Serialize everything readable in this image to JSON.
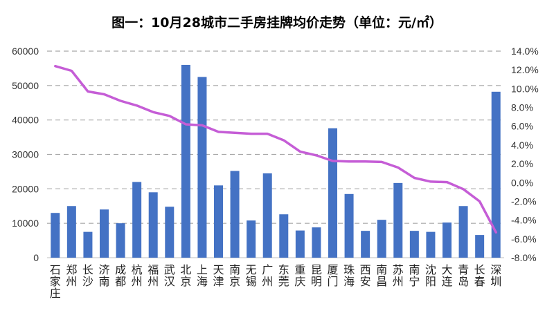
{
  "chart_data": {
    "type": "bar",
    "title": "图一：10月28城市二手房挂牌均价走势（单位：元/㎡）",
    "categories": [
      "石家庄",
      "郑州",
      "长沙",
      "济南",
      "成都",
      "杭州",
      "福州",
      "武汉",
      "北京",
      "上海",
      "天津",
      "南京",
      "无锡",
      "广州",
      "东莞",
      "重庆",
      "昆明",
      "厦门",
      "珠海",
      "西安",
      "南昌",
      "苏州",
      "南宁",
      "沈阳",
      "大连",
      "青岛",
      "长春",
      "深圳"
    ],
    "series": [
      {
        "type": "bar",
        "axis": "left",
        "color": "#4472C4",
        "values": [
          13000,
          15000,
          7500,
          14000,
          10000,
          22000,
          19000,
          14800,
          56000,
          52500,
          21000,
          25200,
          10800,
          24500,
          12600,
          7900,
          8800,
          37600,
          18500,
          7800,
          11000,
          21700,
          7800,
          7500,
          10200,
          15000,
          6600,
          48200
        ]
      },
      {
        "type": "line",
        "axis": "right",
        "color": "#C55DD6",
        "values": [
          12.4,
          11.9,
          9.7,
          9.4,
          8.7,
          8.2,
          7.5,
          7.1,
          6.2,
          6.1,
          5.4,
          5.3,
          5.2,
          5.2,
          4.5,
          3.3,
          2.9,
          2.3,
          2.25,
          2.25,
          2.2,
          1.6,
          0.5,
          0.1,
          0.05,
          -0.7,
          -2.0,
          -5.3
        ]
      }
    ],
    "y_left": {
      "min": 0,
      "max": 60000,
      "ticks": [
        "0",
        "10000",
        "20000",
        "30000",
        "40000",
        "50000",
        "60000"
      ]
    },
    "y_right": {
      "min": -8,
      "max": 14,
      "ticks": [
        "-8.0%",
        "-6.0%",
        "-4.0%",
        "-2.0%",
        "0.0%",
        "2.0%",
        "4.0%",
        "6.0%",
        "8.0%",
        "10.0%",
        "12.0%",
        "14.0%"
      ]
    },
    "grid": "dashed-horizontal"
  }
}
